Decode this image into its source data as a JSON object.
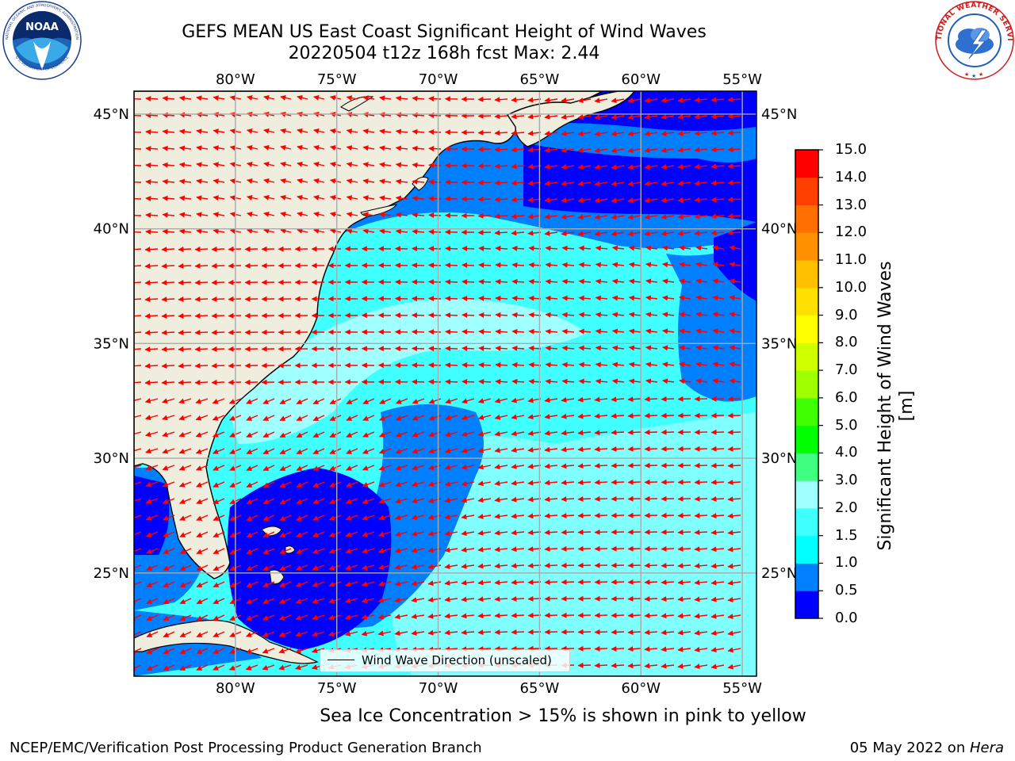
{
  "header": {
    "title_line1": "GEFS MEAN US East Coast Significant Height of Wind Waves",
    "title_line2": "20220504 t12z 168h fcst   Max: 2.44"
  },
  "logos": {
    "left": "noaa-logo",
    "right": "nws-logo"
  },
  "logo_text": {
    "noaa_abbrev": "NOAA",
    "noaa_ring_top": "NATIONAL OCEANIC AND ATMOSPHERIC ADMINISTRATION",
    "noaa_ring_bottom": "U.S. DEPARTMENT OF COMMERCE",
    "nws_ring": "NATIONAL WEATHER SERVICE"
  },
  "map": {
    "lon_labels": [
      "80°W",
      "75°W",
      "70°W",
      "65°W",
      "60°W",
      "55°W"
    ],
    "lat_labels": [
      "45°N",
      "40°N",
      "35°N",
      "30°N",
      "25°N"
    ],
    "lon_range": [
      -85,
      -54.3
    ],
    "lat_range": [
      20.5,
      46
    ],
    "grid": true,
    "legend_label": "Wind Wave Direction (unscaled)",
    "arrow_color": "#ff0000",
    "land_color": "#efedde"
  },
  "colorbar": {
    "label": "Significant Height of Wind Waves [m]",
    "ticks": [
      "0.0",
      "0.5",
      "1.0",
      "1.5",
      "2.0",
      "3.0",
      "4.0",
      "5.0",
      "6.0",
      "7.0",
      "8.0",
      "9.0",
      "10.0",
      "11.0",
      "12.0",
      "13.0",
      "14.0",
      "15.0"
    ],
    "colors": [
      "#0000ff",
      "#0080ff",
      "#00ffff",
      "#40ffff",
      "#a0ffff",
      "#40ff80",
      "#00ff00",
      "#40ff00",
      "#a0ff00",
      "#d0ff00",
      "#ffff00",
      "#ffe000",
      "#ffc000",
      "#ff9000",
      "#ff7000",
      "#ff4000",
      "#ff0000"
    ]
  },
  "notes": {
    "ice": "Sea Ice Concentration > 15% is shown in pink to yellow"
  },
  "footer": {
    "left": "NCEP/EMC/Verification Post Processing Product Generation Branch",
    "date": "05 May 2022 on ",
    "machine": "Hera"
  }
}
